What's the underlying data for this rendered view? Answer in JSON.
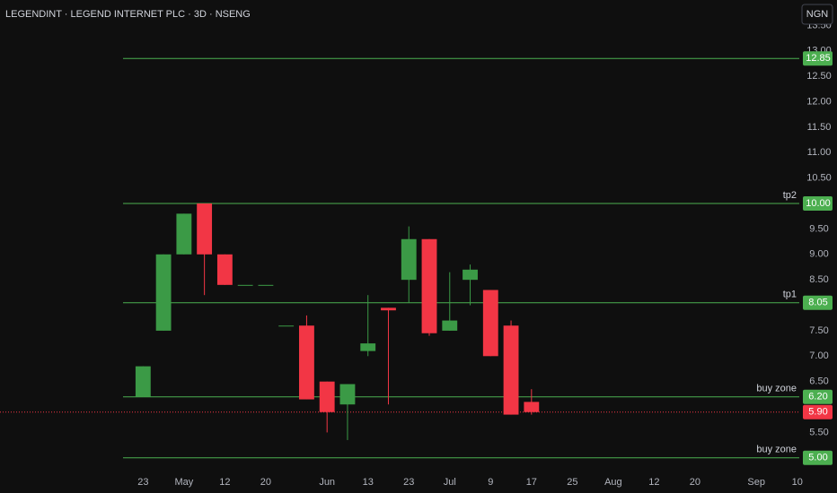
{
  "chart_data": {
    "type": "candlestick",
    "title": "LEGENDINT · LEGEND INTERNET PLC · 3D · NSENG",
    "currency": "NGN",
    "x": [
      0,
      1,
      2,
      3,
      4,
      5,
      6,
      7,
      8,
      9,
      10,
      11,
      12,
      13,
      14,
      15,
      16,
      17,
      18,
      19
    ],
    "open": [
      6.2,
      7.5,
      9.0,
      10.0,
      9.0,
      8.4,
      8.4,
      7.6,
      7.6,
      6.5,
      6.05,
      7.1,
      7.95,
      8.5,
      9.3,
      7.5,
      8.5,
      8.3,
      7.6,
      6.1
    ],
    "high": [
      6.8,
      9.0,
      9.8,
      10.0,
      9.0,
      8.4,
      8.4,
      7.6,
      7.8,
      6.5,
      6.45,
      8.2,
      7.95,
      9.55,
      9.3,
      8.65,
      8.8,
      8.3,
      7.7,
      6.35
    ],
    "low": [
      6.2,
      7.5,
      9.0,
      8.2,
      8.4,
      8.4,
      8.4,
      7.6,
      6.15,
      5.5,
      5.35,
      7.0,
      6.05,
      8.05,
      7.4,
      7.5,
      8.0,
      7.0,
      5.85,
      5.85
    ],
    "close": [
      6.8,
      9.0,
      9.8,
      9.0,
      8.4,
      8.4,
      8.4,
      7.6,
      6.15,
      5.9,
      6.45,
      7.25,
      7.9,
      9.3,
      7.45,
      7.7,
      8.7,
      7.0,
      5.85,
      5.9
    ],
    "up_color": "#3b9a46",
    "down_color": "#f23645",
    "xlim": [
      -7,
      32.1
    ],
    "xticks": [
      {
        "value": 0,
        "label": "23"
      },
      {
        "value": 2,
        "label": "May"
      },
      {
        "value": 4,
        "label": "12"
      },
      {
        "value": 6,
        "label": "20"
      },
      {
        "value": 9,
        "label": "Jun"
      },
      {
        "value": 11,
        "label": "13"
      },
      {
        "value": 13,
        "label": "23"
      },
      {
        "value": 15,
        "label": "Jul"
      },
      {
        "value": 17,
        "label": "9"
      },
      {
        "value": 19,
        "label": "17"
      },
      {
        "value": 21,
        "label": "25"
      },
      {
        "value": 23,
        "label": "Aug"
      },
      {
        "value": 25,
        "label": "12"
      },
      {
        "value": 27,
        "label": "20"
      },
      {
        "value": 30,
        "label": "Sep"
      },
      {
        "value": 32,
        "label": "10"
      }
    ],
    "ylim": [
      4.75,
      14.0
    ],
    "yticks": [
      {
        "value": 13.5,
        "label": "13.50"
      },
      {
        "value": 13.0,
        "label": "13.00"
      },
      {
        "value": 12.5,
        "label": "12.50"
      },
      {
        "value": 12.0,
        "label": "12.00"
      },
      {
        "value": 11.5,
        "label": "11.50"
      },
      {
        "value": 11.0,
        "label": "11.00"
      },
      {
        "value": 10.5,
        "label": "10.50"
      },
      {
        "value": 9.5,
        "label": "9.50"
      },
      {
        "value": 9.0,
        "label": "9.00"
      },
      {
        "value": 8.5,
        "label": "8.50"
      },
      {
        "value": 7.5,
        "label": "7.50"
      },
      {
        "value": 7.0,
        "label": "7.00"
      },
      {
        "value": 6.5,
        "label": "6.50"
      },
      {
        "value": 5.5,
        "label": "5.50"
      }
    ],
    "level_color": "#4caf50",
    "levels": [
      {
        "value": 12.85,
        "value_label": "12.85"
      },
      {
        "value": 10.0,
        "value_label": "10.00",
        "name": "tp2"
      },
      {
        "value": 8.05,
        "value_label": "8.05",
        "name": "tp1"
      },
      {
        "value": 6.2,
        "value_label": "6.20",
        "name": "buy zone"
      },
      {
        "value": 5.0,
        "value_label": "5.00",
        "name": "buy zone"
      }
    ],
    "last_price": {
      "value": 5.9,
      "label": "5.90",
      "color": "#f23645"
    }
  }
}
